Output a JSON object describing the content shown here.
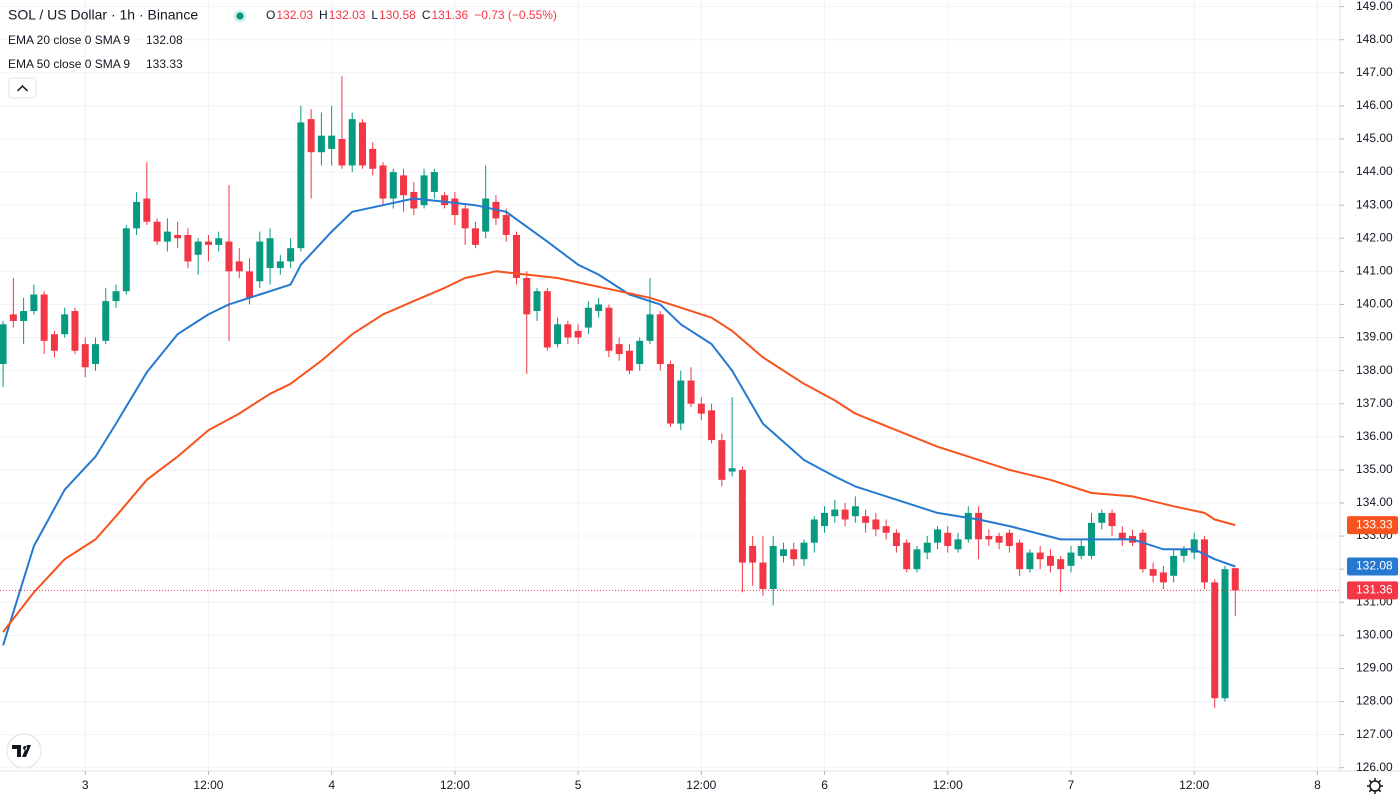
{
  "chart_data": {
    "type": "candlestick",
    "title": "SOL / US Dollar · 1h · Binance",
    "change": "−0.73 (−0.55%)",
    "up_color": "#089981",
    "down_color": "#f23645",
    "open": [
      138.2,
      139.7,
      139.5,
      139.8,
      140.3,
      139.1,
      139.1,
      139.8,
      138.8,
      138.2,
      138.9,
      140.1,
      140.4,
      142.3,
      143.2,
      142.5,
      141.9,
      142.1,
      142.1,
      141.5,
      141.9,
      141.8,
      141.9,
      141.3,
      141.0,
      140.7,
      141.1,
      141.1,
      141.3,
      141.7,
      145.6,
      144.6,
      144.7,
      145.0,
      144.2,
      145.5,
      144.7,
      144.2,
      143.2,
      143.9,
      143.4,
      143.0,
      143.4,
      143.3,
      143.2,
      142.9,
      142.3,
      142.2,
      143.1,
      142.7,
      142.1,
      140.8,
      139.8,
      140.4,
      138.8,
      139.4,
      139.2,
      139.3,
      139.8,
      139.9,
      138.8,
      138.6,
      138.2,
      138.9,
      139.7,
      138.2,
      136.4,
      137.7,
      137.0,
      136.8,
      135.9,
      134.95,
      135.0,
      132.7,
      132.2,
      131.4,
      132.4,
      132.6,
      132.3,
      132.8,
      133.3,
      133.6,
      133.8,
      133.6,
      133.6,
      133.5,
      133.3,
      133.1,
      132.8,
      132.0,
      132.5,
      132.8,
      133.1,
      132.6,
      132.9,
      133.7,
      133.0,
      133.0,
      133.1,
      132.8,
      132.0,
      132.5,
      132.4,
      132.3,
      132.1,
      132.4,
      132.4,
      133.4,
      133.7,
      133.1,
      133.0,
      133.1,
      132.0,
      131.9,
      131.8,
      132.4,
      132.5,
      132.9,
      131.6,
      128.1,
      132.03
    ],
    "high": [
      139.5,
      140.8,
      140.2,
      140.6,
      140.4,
      139.2,
      139.9,
      139.9,
      139.0,
      139.0,
      140.5,
      140.6,
      142.4,
      143.4,
      144.3,
      142.6,
      142.6,
      142.5,
      142.3,
      142.0,
      142.1,
      142.2,
      143.6,
      141.7,
      141.4,
      142.2,
      142.3,
      141.5,
      142.0,
      146.0,
      145.9,
      145.8,
      146.0,
      146.9,
      145.8,
      145.6,
      144.9,
      144.3,
      144.1,
      144.1,
      143.7,
      144.1,
      144.1,
      143.4,
      143.4,
      143.0,
      142.5,
      144.2,
      143.3,
      142.9,
      142.2,
      141.0,
      140.5,
      140.5,
      139.6,
      139.5,
      139.4,
      140.1,
      140.2,
      140.0,
      139.0,
      138.8,
      139.0,
      140.8,
      139.8,
      138.3,
      138.0,
      138.1,
      137.2,
      137.0,
      136.1,
      137.2,
      135.1,
      133.0,
      133.0,
      133.0,
      132.8,
      132.8,
      132.9,
      133.6,
      133.9,
      134.1,
      134.0,
      134.2,
      133.8,
      133.7,
      133.5,
      133.2,
      132.9,
      132.7,
      133.0,
      133.3,
      133.3,
      133.1,
      133.9,
      133.9,
      133.2,
      133.1,
      133.2,
      132.9,
      132.6,
      132.7,
      132.6,
      132.4,
      132.7,
      132.9,
      133.7,
      133.8,
      133.8,
      133.3,
      133.2,
      133.2,
      132.2,
      132.1,
      132.6,
      132.7,
      133.1,
      133.0,
      131.7,
      132.1,
      132.03
    ],
    "low": [
      137.5,
      139.3,
      138.8,
      139.7,
      138.5,
      138.4,
      139.0,
      138.5,
      137.8,
      138.0,
      138.8,
      139.9,
      140.3,
      142.1,
      142.4,
      141.8,
      141.6,
      141.7,
      141.1,
      140.9,
      141.3,
      141.6,
      138.9,
      140.8,
      140.0,
      140.5,
      140.6,
      140.9,
      141.1,
      141.6,
      143.2,
      144.2,
      144.2,
      144.1,
      144.0,
      144.1,
      143.9,
      143.0,
      142.9,
      142.8,
      142.7,
      142.9,
      143.2,
      142.9,
      142.4,
      141.8,
      141.7,
      142.0,
      142.4,
      141.9,
      140.6,
      137.9,
      139.5,
      138.6,
      138.7,
      138.8,
      138.8,
      139.1,
      139.6,
      138.4,
      138.3,
      137.9,
      138.0,
      138.8,
      138.0,
      136.3,
      136.2,
      136.9,
      136.5,
      135.8,
      134.5,
      134.8,
      131.3,
      131.5,
      131.2,
      130.9,
      132.2,
      132.1,
      132.1,
      132.5,
      133.1,
      133.4,
      133.3,
      133.4,
      133.1,
      133.0,
      132.9,
      132.5,
      131.9,
      131.9,
      132.3,
      132.6,
      132.5,
      132.5,
      132.8,
      132.3,
      132.7,
      132.6,
      132.5,
      131.8,
      131.9,
      132.0,
      131.9,
      131.3,
      131.9,
      132.3,
      132.3,
      133.2,
      133.0,
      132.7,
      132.7,
      131.9,
      131.6,
      131.4,
      131.6,
      132.2,
      132.3,
      131.4,
      127.8,
      128.0,
      130.58
    ],
    "close": [
      139.4,
      139.5,
      139.8,
      140.3,
      138.9,
      138.6,
      139.7,
      138.6,
      138.1,
      138.8,
      140.1,
      140.4,
      142.3,
      143.1,
      142.5,
      141.9,
      142.2,
      142.0,
      141.3,
      141.9,
      141.8,
      142.0,
      141.0,
      141.0,
      140.2,
      141.9,
      142.0,
      141.3,
      141.7,
      145.5,
      144.6,
      145.1,
      145.1,
      144.2,
      145.6,
      144.2,
      144.1,
      143.2,
      144.0,
      143.3,
      142.9,
      143.9,
      144.0,
      143.0,
      142.7,
      142.3,
      141.8,
      143.2,
      142.6,
      142.1,
      140.8,
      139.7,
      140.4,
      138.7,
      139.4,
      139.0,
      139.0,
      139.9,
      140.0,
      138.6,
      138.5,
      138.0,
      138.9,
      139.7,
      138.2,
      136.4,
      137.7,
      137.0,
      136.7,
      135.9,
      134.7,
      135.05,
      132.2,
      132.2,
      131.4,
      132.7,
      132.6,
      132.3,
      132.8,
      133.5,
      133.7,
      133.8,
      133.5,
      133.9,
      133.4,
      133.2,
      133.1,
      132.7,
      132.0,
      132.6,
      132.8,
      133.2,
      132.7,
      132.9,
      133.7,
      132.9,
      132.9,
      132.8,
      132.7,
      132.0,
      132.5,
      132.3,
      132.1,
      132.0,
      132.5,
      132.7,
      133.4,
      133.7,
      133.3,
      132.9,
      132.8,
      132.0,
      131.8,
      131.6,
      132.4,
      132.6,
      132.9,
      131.6,
      128.1,
      132.0,
      131.36
    ],
    "series": [
      {
        "name": "EMA 20 close 0 SMA 9",
        "color": "#2679d0",
        "x": [
          0,
          3,
          6,
          9,
          11,
          14,
          17,
          20,
          22,
          25,
          28,
          29,
          32,
          34,
          37,
          40,
          43,
          46,
          49,
          53,
          56,
          58,
          61,
          64,
          66,
          69,
          71,
          74,
          78,
          81,
          83,
          87,
          91,
          95,
          98,
          103,
          106,
          110,
          113,
          116,
          118,
          120
        ],
        "values": [
          129.7,
          132.7,
          134.4,
          135.4,
          136.4,
          137.95,
          139.1,
          139.7,
          140.0,
          140.3,
          140.6,
          141.2,
          142.2,
          142.8,
          143.0,
          143.2,
          143.1,
          143.0,
          142.8,
          141.9,
          141.2,
          140.9,
          140.3,
          140.0,
          139.4,
          138.8,
          138.0,
          136.4,
          135.3,
          134.8,
          134.5,
          134.1,
          133.7,
          133.5,
          133.3,
          132.9,
          132.9,
          132.9,
          132.6,
          132.6,
          132.3,
          132.08
        ]
      },
      {
        "name": "EMA 50 close 0 SMA 9",
        "color": "#f7531e",
        "x": [
          0,
          3,
          6,
          9,
          11,
          14,
          17,
          20,
          23,
          26,
          28,
          31,
          34,
          37,
          40,
          43,
          45,
          48,
          51,
          54,
          57,
          60,
          63,
          66,
          69,
          71,
          74,
          78,
          81,
          83,
          87,
          91,
          94,
          98,
          102,
          106,
          110,
          114,
          117,
          118,
          120
        ],
        "values": [
          130.1,
          131.3,
          132.3,
          132.9,
          133.6,
          134.7,
          135.4,
          136.2,
          136.7,
          137.3,
          137.6,
          138.3,
          139.1,
          139.7,
          140.1,
          140.5,
          140.8,
          141.0,
          140.9,
          140.8,
          140.6,
          140.4,
          140.2,
          139.9,
          139.6,
          139.2,
          138.4,
          137.6,
          137.1,
          136.7,
          136.2,
          135.7,
          135.4,
          135.0,
          134.7,
          134.3,
          134.2,
          133.9,
          133.7,
          133.5,
          133.33
        ]
      }
    ],
    "xlim": [
      -0.3,
      130.2
    ],
    "xticks": [
      {
        "value": 8,
        "label": "3"
      },
      {
        "value": 20,
        "label": "12:00"
      },
      {
        "value": 32,
        "label": "4"
      },
      {
        "value": 44,
        "label": "12:00"
      },
      {
        "value": 56,
        "label": "5"
      },
      {
        "value": 68,
        "label": "12:00"
      },
      {
        "value": 80,
        "label": "6"
      },
      {
        "value": 92,
        "label": "12:00"
      },
      {
        "value": 104,
        "label": "7"
      },
      {
        "value": 116,
        "label": "12:00"
      },
      {
        "value": 128,
        "label": "8"
      }
    ],
    "ylim": [
      125.9,
      149.2
    ],
    "yticks": [
      {
        "value": 126,
        "label": "126.00"
      },
      {
        "value": 127,
        "label": "127.00"
      },
      {
        "value": 128,
        "label": "128.00"
      },
      {
        "value": 129,
        "label": "129.00"
      },
      {
        "value": 130,
        "label": "130.00"
      },
      {
        "value": 131,
        "label": "131.00"
      },
      {
        "value": 132,
        "label": "132.00"
      },
      {
        "value": 133,
        "label": "133.00"
      },
      {
        "value": 134,
        "label": "134.00"
      },
      {
        "value": 135,
        "label": "135.00"
      },
      {
        "value": 136,
        "label": "136.00"
      },
      {
        "value": 137,
        "label": "137.00"
      },
      {
        "value": 138,
        "label": "138.00"
      },
      {
        "value": 139,
        "label": "139.00"
      },
      {
        "value": 140,
        "label": "140.00"
      },
      {
        "value": 141,
        "label": "141.00"
      },
      {
        "value": 142,
        "label": "142.00"
      },
      {
        "value": 143,
        "label": "143.00"
      },
      {
        "value": 144,
        "label": "144.00"
      },
      {
        "value": 145,
        "label": "145.00"
      },
      {
        "value": 146,
        "label": "146.00"
      },
      {
        "value": 147,
        "label": "147.00"
      },
      {
        "value": 148,
        "label": "148.00"
      },
      {
        "value": 149,
        "label": "149.00"
      }
    ],
    "grid": true,
    "ohlc_keys": [
      "O",
      "H",
      "L",
      "C"
    ]
  }
}
